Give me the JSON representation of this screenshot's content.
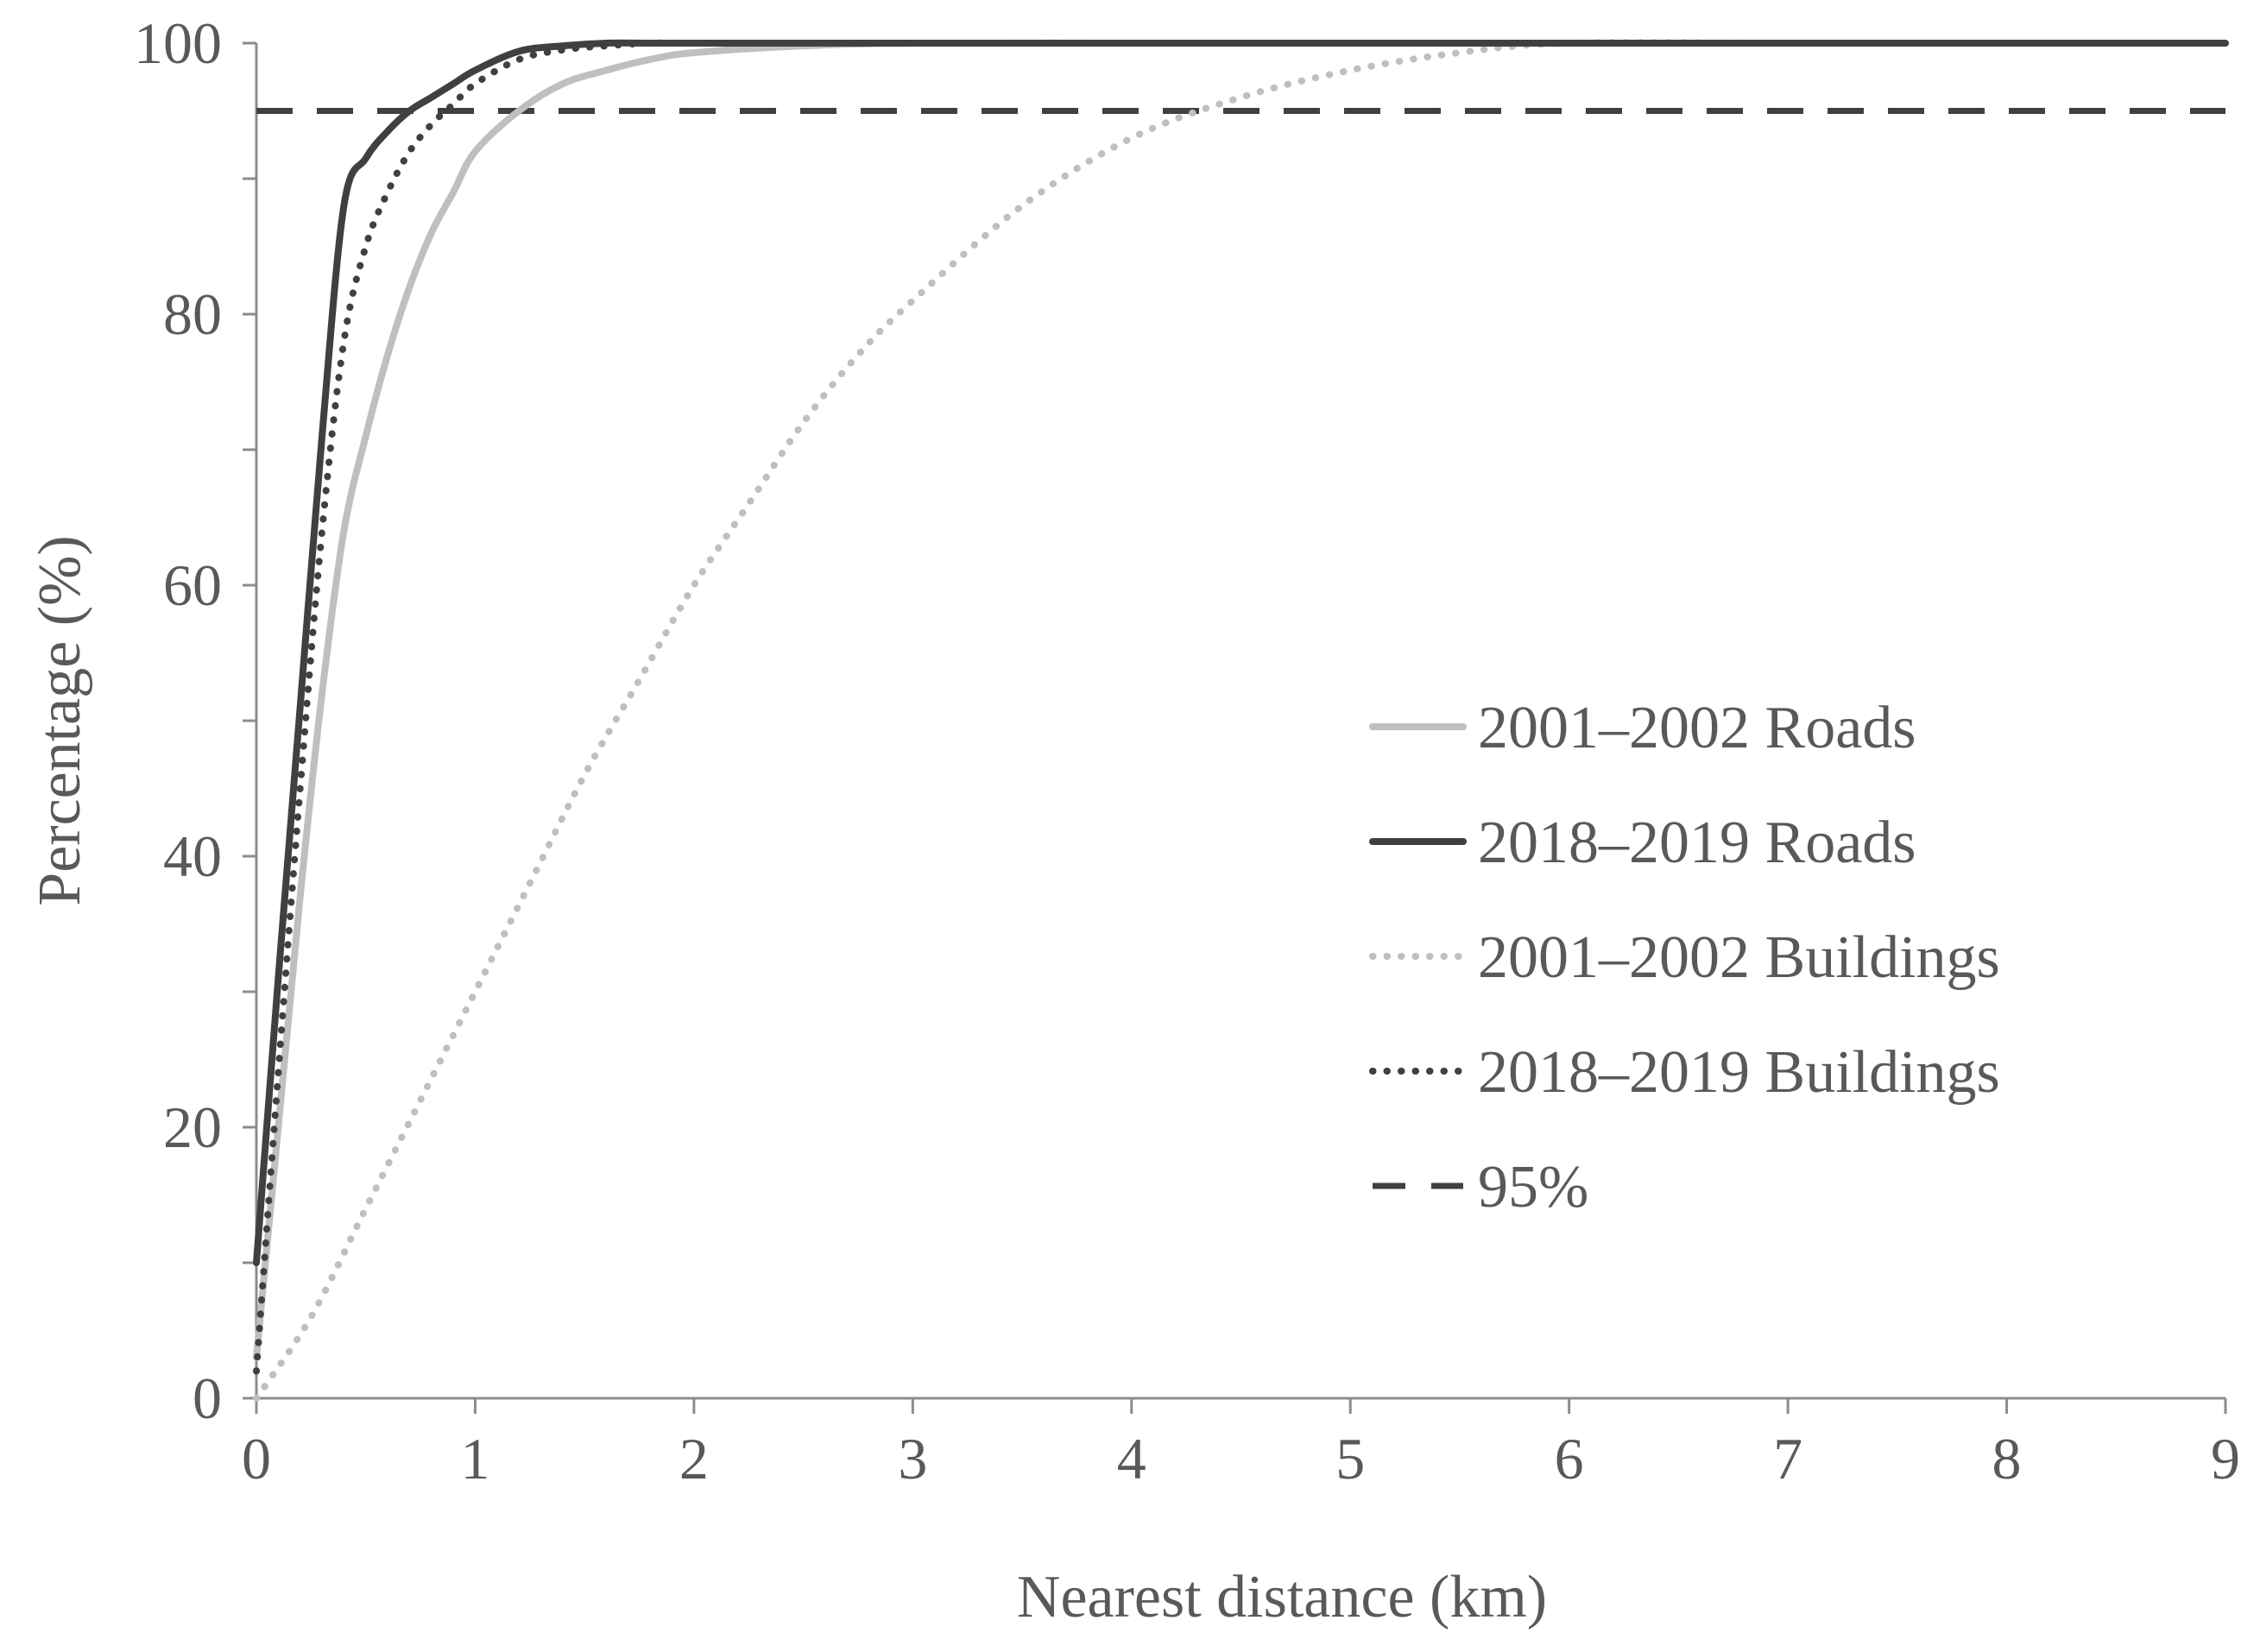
{
  "chart_data": {
    "type": "line",
    "title": "",
    "xlabel": "Nearest distance (km)",
    "ylabel": "Percentage (%)",
    "xlim": [
      0,
      9
    ],
    "ylim": [
      0,
      100
    ],
    "xticks": [
      0,
      1,
      2,
      3,
      4,
      5,
      6,
      7,
      8,
      9
    ],
    "yticks": [
      0,
      20,
      40,
      60,
      80,
      100
    ],
    "grid": false,
    "legend_position": "right",
    "series": [
      {
        "name": "2001–2002 Roads",
        "color": "#bfbfbf",
        "style": "solid",
        "x": [
          0,
          0.1,
          0.2,
          0.3,
          0.4,
          0.5,
          0.6,
          0.7,
          0.8,
          0.9,
          1.0,
          1.2,
          1.4,
          1.6,
          1.8,
          2.0,
          2.5,
          3.0,
          4.0,
          5.0,
          6.0,
          7.0,
          8.0,
          9.0
        ],
        "y": [
          3,
          20,
          37,
          52,
          64,
          71,
          77,
          82,
          86,
          89,
          92,
          95,
          97,
          98,
          98.8,
          99.3,
          99.8,
          100,
          100,
          100,
          100,
          100,
          100,
          100
        ]
      },
      {
        "name": "2018–2019 Roads",
        "color": "#404040",
        "style": "solid",
        "x": [
          0,
          0.1,
          0.2,
          0.3,
          0.4,
          0.5,
          0.6,
          0.7,
          0.8,
          0.9,
          1.0,
          1.2,
          1.4,
          1.6,
          1.8,
          2.0,
          2.5,
          3.0,
          4.0,
          5.0,
          6.0,
          7.0,
          8.0,
          9.0
        ],
        "y": [
          10,
          31,
          51,
          71,
          88,
          91.5,
          93.5,
          95,
          96,
          97,
          98,
          99.4,
          99.8,
          100,
          100,
          100,
          100,
          100,
          100,
          100,
          100,
          100,
          100,
          100
        ]
      },
      {
        "name": "2001–2002 Buildings",
        "color": "#bfbfbf",
        "style": "dotted",
        "x": [
          0,
          0.25,
          0.5,
          0.75,
          1.0,
          1.25,
          1.5,
          1.75,
          2.0,
          2.25,
          2.5,
          2.75,
          3.0,
          3.5,
          4.0,
          4.5,
          5.0,
          5.5,
          6.0,
          7.0,
          8.0,
          9.0
        ],
        "y": [
          0,
          6,
          14,
          22,
          30,
          38,
          46,
          53,
          60,
          66,
          72,
          77,
          81,
          88,
          93,
          96,
          98,
          99.3,
          100,
          100,
          100,
          100
        ]
      },
      {
        "name": "2018–2019 Buildings",
        "color": "#404040",
        "style": "dotted",
        "x": [
          0,
          0.1,
          0.2,
          0.3,
          0.4,
          0.5,
          0.6,
          0.7,
          0.8,
          0.9,
          1.0,
          1.2,
          1.4,
          1.6,
          1.8,
          2.0,
          2.5,
          3.0,
          4.0,
          5.0,
          6.0,
          7.0,
          8.0,
          9.0
        ],
        "y": [
          2,
          24,
          45,
          64,
          78,
          85,
          89,
          92,
          94,
          95.5,
          97,
          98.8,
          99.5,
          99.8,
          100,
          100,
          100,
          100,
          100,
          100,
          100,
          100,
          100,
          100
        ]
      },
      {
        "name": "95%",
        "color": "#404040",
        "style": "dashed",
        "x": [
          0,
          9
        ],
        "y": [
          95,
          95
        ]
      }
    ]
  }
}
